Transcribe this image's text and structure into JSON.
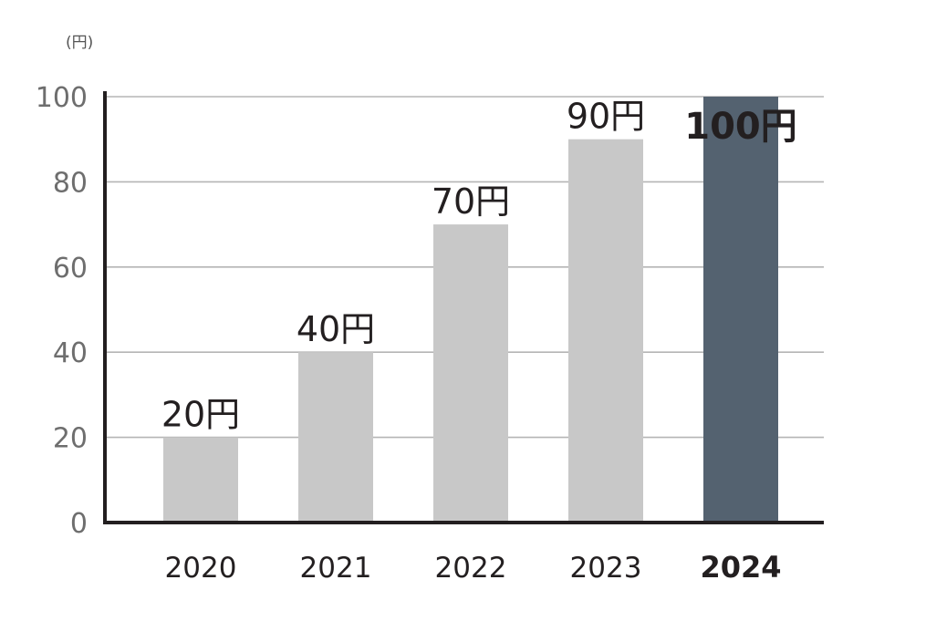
{
  "chart_data": {
    "type": "bar",
    "unit_label": "(円)",
    "categories": [
      "2020",
      "2021",
      "2022",
      "2023",
      "2024"
    ],
    "values": [
      20,
      40,
      70,
      90,
      100
    ],
    "data_labels": [
      "20円",
      "40円",
      "70円",
      "90円",
      "100円"
    ],
    "highlight_index": 4,
    "ylim": [
      0,
      100
    ],
    "yticks": [
      0,
      20,
      40,
      60,
      80,
      100
    ],
    "ytick_labels": [
      "0",
      "20",
      "40",
      "60",
      "80",
      "100"
    ],
    "grid": true,
    "colors": {
      "bar": "#c8c8c8",
      "highlight_bar": "#546270",
      "axis": "#231f20",
      "grid": "#b5b5b5"
    }
  }
}
